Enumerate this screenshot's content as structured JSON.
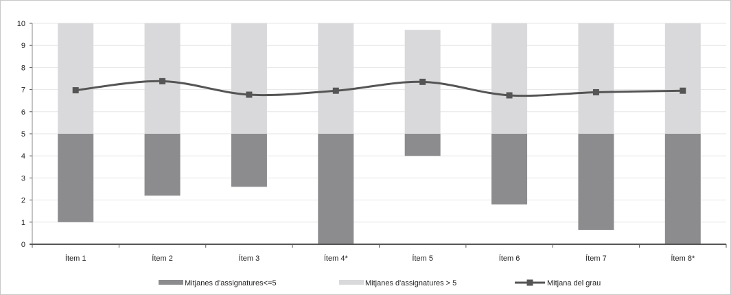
{
  "chart_data": {
    "type": "bar",
    "categories": [
      "Ítem 1",
      "Ítem 2",
      "Ítem 3",
      "Ítem 4*",
      "Ítem 5",
      "Ítem 6",
      "Ítem 7",
      "Ítem 8*"
    ],
    "series": [
      {
        "name": "Mitjanes d'assignatures<=5",
        "kind": "range-bar",
        "low": [
          1.0,
          2.2,
          2.6,
          0.0,
          4.0,
          1.8,
          0.65,
          0.0
        ],
        "high": [
          5,
          5,
          5,
          5,
          5,
          5,
          5,
          5
        ]
      },
      {
        "name": "Mitjanes d'assignatures > 5",
        "kind": "range-bar",
        "low": [
          5,
          5,
          5,
          5,
          5,
          5,
          5,
          5
        ],
        "high": [
          10.0,
          10.0,
          10.0,
          10.0,
          9.7,
          10.0,
          10.0,
          10.0
        ]
      },
      {
        "name": "Mitjana del grau",
        "kind": "line",
        "values": [
          6.97,
          7.38,
          6.77,
          6.95,
          7.35,
          6.74,
          6.88,
          6.95
        ]
      }
    ],
    "yticks": [
      0,
      1,
      2,
      3,
      4,
      5,
      6,
      7,
      8,
      9,
      10
    ],
    "ylim": [
      0,
      10
    ],
    "grid": true,
    "legend_position": "bottom",
    "title": "",
    "xlabel": "",
    "ylabel": "",
    "colors": {
      "low_bar": "#8c8c8e",
      "high_bar": "#d9d9db",
      "line": "#555555",
      "grid": "#e6e6e6",
      "axis": "#555555"
    }
  }
}
